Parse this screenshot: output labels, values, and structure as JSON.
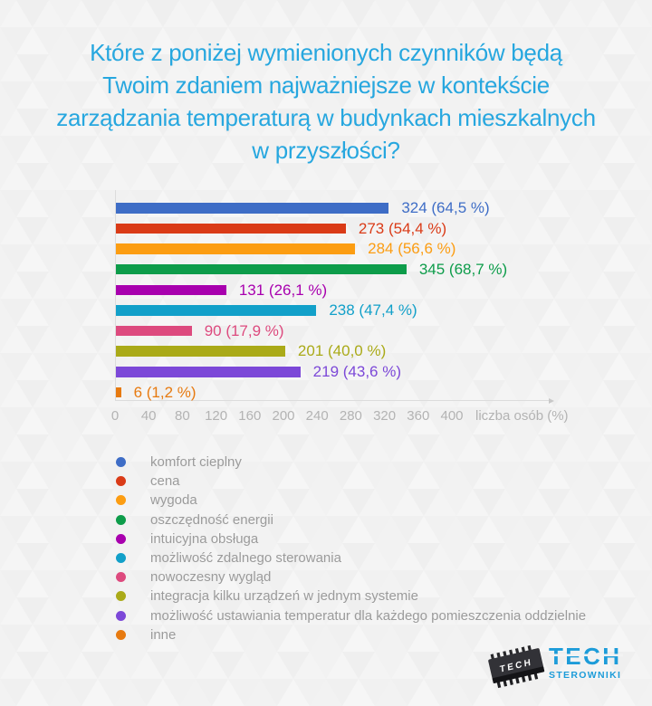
{
  "title": {
    "color": "#27a7df",
    "lines": [
      "Które z poniżej wymienionych czynników będą",
      "Twoim zdaniem najważniejsze w kontekście",
      "zarządzania temperaturą w budynkach mieszkalnych",
      "w przyszłości?"
    ]
  },
  "chart_data": {
    "type": "bar",
    "orientation": "horizontal",
    "title": "Które z poniżej wymienionych czynników będą Twoim zdaniem najważniejsze w kontekście zarządzania temperaturą w budynkach mieszkalnych w przyszłości?",
    "xlabel": "liczba osób (%)",
    "x_ticks": [
      0,
      40,
      80,
      120,
      160,
      200,
      240,
      280,
      320,
      360,
      400
    ],
    "xlim": [
      0,
      400
    ],
    "grid": false,
    "legend_position": "bottom-left",
    "categories": [
      "komfort cieplny",
      "cena",
      "wygoda",
      "oszczędność energii",
      "intuicyjna obsługa",
      "możliwość zdalnego sterowania",
      "nowoczesny wygląd",
      "integracja kilku urządzeń w jednym systemie",
      "możliwość ustawiania temperatur dla każdego pomieszczenia oddzielnie",
      "inne"
    ],
    "values": [
      324,
      273,
      284,
      345,
      131,
      238,
      90,
      201,
      219,
      6
    ],
    "percents": [
      64.5,
      54.4,
      56.6,
      68.7,
      26.1,
      47.4,
      17.9,
      40.0,
      43.6,
      1.2
    ],
    "value_labels": [
      "324 (64,5 %)",
      "273 (54,4 %)",
      "284 (56,6 %)",
      "345 (68,7 %)",
      "131 (26,1 %)",
      "238 (47,4 %)",
      "90 (17,9 %)",
      "201 (40,0 %)",
      "219 (43,6 %)",
      "6 (1,2 %)"
    ],
    "colors": [
      "#3e6dc6",
      "#da3b17",
      "#fc9d12",
      "#0d9c4a",
      "#a800ae",
      "#12a0c9",
      "#dd4a7e",
      "#aaaa18",
      "#7c48d8",
      "#e77a10"
    ],
    "axis_color": "#dcdcdc",
    "tick_color": "#b3b3b3"
  },
  "legend": {
    "text_color": "#9b9b9b"
  },
  "logo": {
    "brand": "TECH",
    "subtitle": "STEROWNIKI",
    "chip_label": "TECH",
    "color": "#1d9cd9"
  }
}
